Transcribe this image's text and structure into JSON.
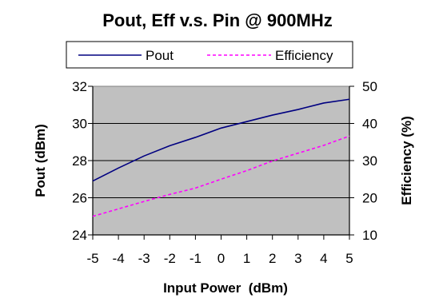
{
  "chart_data": {
    "type": "line",
    "title": "Pout, Eff v.s. Pin @ 900MHz",
    "xlabel": "Input Power  (dBm)",
    "ylabel": "Pout (dBm)",
    "y2label": "Efficiency (%)",
    "x": [
      -5,
      -4,
      -3,
      -2,
      -1,
      0,
      1,
      2,
      3,
      4,
      5
    ],
    "xlim": [
      -5,
      5
    ],
    "ylim": [
      24,
      32
    ],
    "y2lim": [
      10,
      50
    ],
    "x_ticks": [
      "-5",
      "-4",
      "-3",
      "-2",
      "-1",
      "0",
      "1",
      "2",
      "3",
      "4",
      "5"
    ],
    "y_ticks": [
      "24",
      "26",
      "28",
      "30",
      "32"
    ],
    "y2_ticks": [
      "10",
      "20",
      "30",
      "40",
      "50"
    ],
    "grid": true,
    "legend_position": "top",
    "plot_background": "#c0c0c0",
    "series": [
      {
        "name": "Pout",
        "axis": "left",
        "color": "#000080",
        "style": "solid",
        "values": [
          26.9,
          27.6,
          28.25,
          28.8,
          29.25,
          29.75,
          30.1,
          30.45,
          30.75,
          31.1,
          31.3
        ]
      },
      {
        "name": "Efficiency",
        "axis": "right",
        "color": "#ff00ff",
        "style": "dashed",
        "values": [
          15.0,
          17.0,
          19.0,
          20.9,
          22.6,
          25.0,
          27.3,
          29.9,
          32.0,
          34.1,
          36.6
        ]
      }
    ]
  }
}
